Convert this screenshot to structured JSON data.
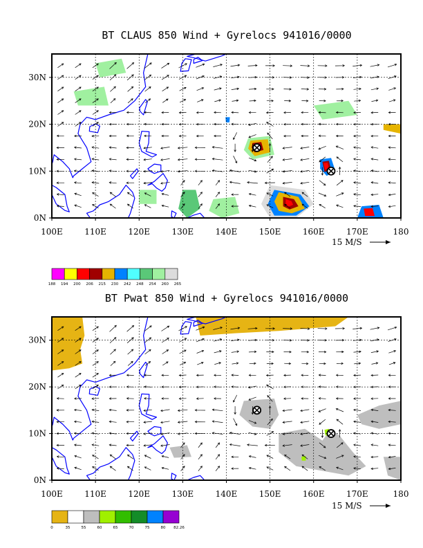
{
  "panel1": {
    "title": "BT CLAUS 850 Wind + Gyrelocs 941016/0000",
    "ref_vector_label": "15 M/S",
    "x_ticks": [
      "100E",
      "110E",
      "120E",
      "130E",
      "140E",
      "150E",
      "160E",
      "170E",
      "180"
    ],
    "y_ticks": [
      "0N",
      "10N",
      "20N",
      "30N"
    ],
    "colorbar": {
      "colors": [
        "#ff00ff",
        "#ffff00",
        "#ff0000",
        "#a00000",
        "#e6b400",
        "#0082ff",
        "#50ffff",
        "#5ac878",
        "#a0f0a0",
        "#dcdcdc"
      ],
      "labels": [
        "188",
        "194",
        "200",
        "206",
        "215",
        "230",
        "242",
        "248",
        "254",
        "260",
        "265"
      ]
    }
  },
  "panel2": {
    "title": "BT Pwat 850 Wind + Gyrelocs 941016/0000",
    "ref_vector_label": "15 M/S",
    "x_ticks": [
      "100E",
      "110E",
      "120E",
      "130E",
      "140E",
      "150E",
      "160E",
      "170E",
      "180"
    ],
    "y_ticks": [
      "0N",
      "10N",
      "20N",
      "30N"
    ],
    "colorbar": {
      "colors": [
        "#e6b414",
        "#ffffff",
        "#bebebe",
        "#a0f000",
        "#32be00",
        "#148c28",
        "#0082ff",
        "#9600d2"
      ],
      "labels": [
        "0",
        "35",
        "55",
        "60",
        "65",
        "70",
        "75",
        "80",
        "82.26"
      ]
    }
  },
  "gyre_locations": [
    {
      "lon": 147,
      "lat": 15
    },
    {
      "lon": 164,
      "lat": 10
    }
  ],
  "colors": {
    "coastline": "#0000ff",
    "frame": "#000000"
  }
}
